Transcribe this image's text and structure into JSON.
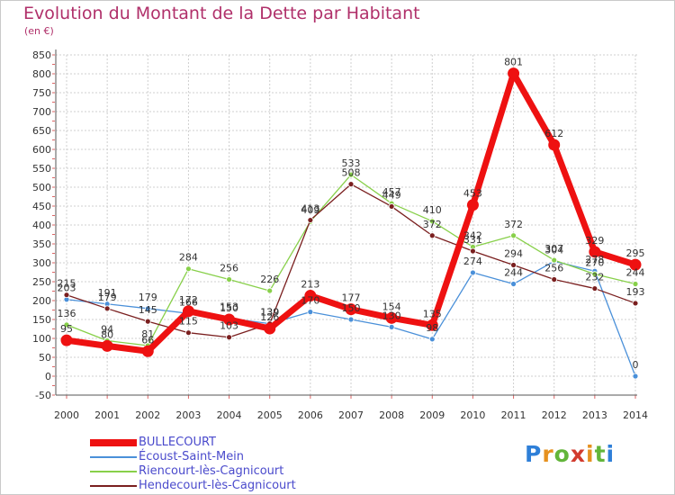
{
  "chart_data": {
    "type": "line",
    "title": "Evolution du Montant de la Dette par Habitant",
    "subtitle": "(en €)",
    "x": [
      "2000",
      "2001",
      "2002",
      "2003",
      "2004",
      "2005",
      "2006",
      "2007",
      "2008",
      "2009",
      "2010",
      "2011",
      "2012",
      "2013",
      "2014"
    ],
    "ylim": [
      -50,
      850
    ],
    "yticks": [
      -50,
      0,
      50,
      100,
      150,
      200,
      250,
      300,
      350,
      400,
      450,
      500,
      550,
      600,
      650,
      700,
      750,
      800,
      850
    ],
    "grid": true,
    "legend_position": "bottom-left",
    "series": [
      {
        "name": "BULLECOURT",
        "color": "#ee1111",
        "values": [
          95,
          80,
          66,
          172,
          150,
          126,
          213,
          177,
          154,
          135,
          453,
          801,
          612,
          329,
          295
        ]
      },
      {
        "name": "Écoust-Saint-Mein",
        "color": "#4a90d9",
        "values": [
          203,
          191,
          179,
          166,
          153,
          139,
          170,
          150,
          130,
          98,
          274,
          244,
          304,
          278,
          0
        ]
      },
      {
        "name": "Riencourt-lès-Cagnicourt",
        "color": "#88d04a",
        "values": [
          136,
          94,
          81,
          284,
          256,
          226,
          409,
          533,
          457,
          410,
          342,
          372,
          307,
          270,
          244
        ]
      },
      {
        "name": "Hendecourt-lès-Cagnicourt",
        "color": "#7a1f1f",
        "values": [
          215,
          179,
          145,
          115,
          103,
          139,
          413,
          508,
          449,
          372,
          331,
          294,
          256,
          232,
          193
        ]
      }
    ]
  },
  "logo": {
    "text": "Proxiti"
  }
}
